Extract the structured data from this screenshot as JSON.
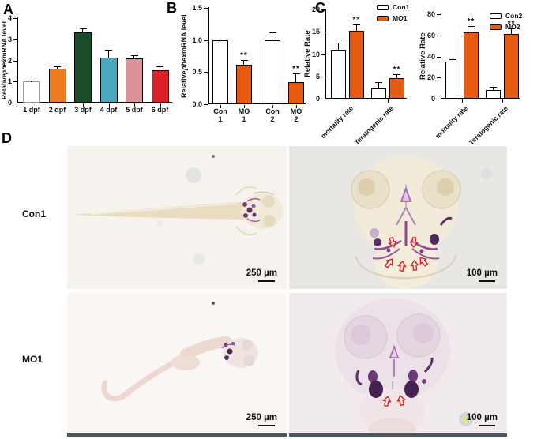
{
  "panels": {
    "a": "A",
    "b": "B",
    "c": "C",
    "d": "D"
  },
  "accent_colors": {
    "treatment_orange": "#e75b11",
    "control_white": "#ffffff"
  },
  "chart_data": [
    {
      "type": "bar",
      "panel": "A",
      "title": "",
      "ylabel": {
        "pre": "Relative ",
        "italic": "phex",
        "post": " mRNA level"
      },
      "ylim": [
        0,
        4
      ],
      "yticks": [
        "0",
        "1",
        "2",
        "3",
        "4"
      ],
      "categories": [
        "1 dpf",
        "2 dpf",
        "3 dpf",
        "4 dpf",
        "5 dpf",
        "6 dpf"
      ],
      "values": [
        1.0,
        1.62,
        3.33,
        2.15,
        2.08,
        1.52
      ],
      "errors": [
        0.02,
        0.07,
        0.15,
        0.32,
        0.14,
        0.16
      ],
      "colors": [
        "#ffffff",
        "#ee7c1e",
        "#1b4d2c",
        "#4aa7c0",
        "#dd929a",
        "#da1f27"
      ],
      "bar_borders": [
        "#9a9a9a",
        "#000000",
        "#000000",
        "#000000",
        "#000000",
        "#000000"
      ],
      "sig": [
        "",
        "",
        "",
        "",
        "",
        ""
      ]
    },
    {
      "type": "bar",
      "panel": "B",
      "title": "",
      "ylabel": {
        "pre": "Relative ",
        "italic": "phex",
        "post": " mRNA level"
      },
      "ylim": [
        0,
        1.5
      ],
      "yticks": [
        "0.0",
        "0.5",
        "1.0",
        "1.5"
      ],
      "categories": [
        "Con\n1",
        "MO\n1",
        "Con\n2",
        "MO\n2"
      ],
      "values": [
        1.0,
        0.62,
        1.0,
        0.34
      ],
      "errors": [
        0.01,
        0.06,
        0.11,
        0.13
      ],
      "colors": [
        "#ffffff",
        "#e75b11",
        "#ffffff",
        "#e75b11"
      ],
      "bar_borders": [
        "#000000",
        "#000000",
        "#000000",
        "#000000"
      ],
      "sig": [
        "",
        "**",
        "",
        "**"
      ]
    },
    {
      "type": "grouped_bar",
      "panel": "C",
      "title": "",
      "ylabel": {
        "pre": "Relative Rate",
        "italic": "",
        "post": ""
      },
      "ylim": [
        0,
        20
      ],
      "yticks": [
        "0",
        "5",
        "10",
        "15",
        "20"
      ],
      "categories": [
        "mortality rate",
        "Teratogenic rate"
      ],
      "legend_position": "top-right",
      "series": [
        {
          "name": "Con1",
          "color": "#ffffff",
          "values": [
            11,
            2.3
          ],
          "errors": [
            1.4,
            1.2
          ],
          "sig": [
            "",
            ""
          ]
        },
        {
          "name": "MO1",
          "color": "#e75b11",
          "values": [
            15.3,
            4.6
          ],
          "errors": [
            1.2,
            0.7
          ],
          "sig": [
            "**",
            "**"
          ]
        }
      ]
    },
    {
      "type": "grouped_bar",
      "panel": "C",
      "title": "",
      "ylabel": {
        "pre": "Relative Rate",
        "italic": "",
        "post": ""
      },
      "ylim": [
        0,
        80
      ],
      "yticks": [
        "0",
        "20",
        "40",
        "60",
        "80"
      ],
      "categories": [
        "mortality rate",
        "Teratogenic rate"
      ],
      "legend_position": "top-right",
      "series": [
        {
          "name": "Con2",
          "color": "#ffffff",
          "values": [
            35,
            8
          ],
          "errors": [
            2,
            2.5
          ],
          "sig": [
            "",
            ""
          ]
        },
        {
          "name": "MO2",
          "color": "#e75b11",
          "values": [
            63,
            61
          ],
          "errors": [
            5,
            5
          ],
          "sig": [
            "**",
            "**"
          ]
        }
      ]
    }
  ],
  "micrographs": {
    "row_labels": [
      "Con1",
      "MO1"
    ],
    "panels": [
      {
        "id": "con1-whole-larva",
        "scale_label": "250 µm"
      },
      {
        "id": "con1-head-dorsal",
        "scale_label": "100 µm"
      },
      {
        "id": "mo1-whole-larva",
        "scale_label": "250 µm"
      },
      {
        "id": "mo1-head-dorsal",
        "scale_label": "100 µm"
      }
    ]
  }
}
